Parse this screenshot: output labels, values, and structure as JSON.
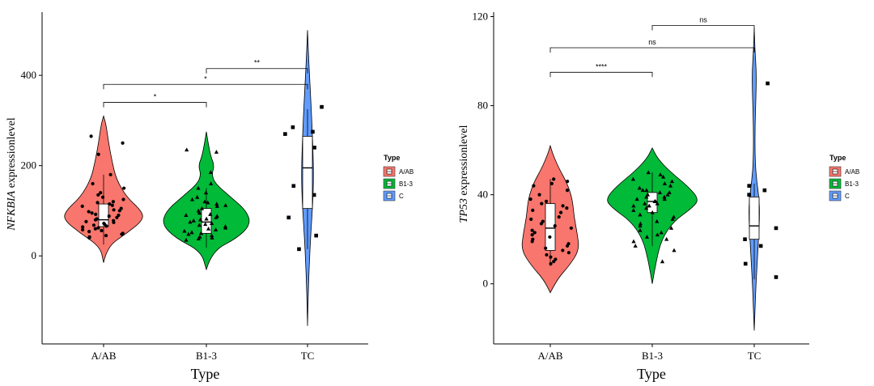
{
  "chart_data": [
    {
      "type": "violin",
      "xlabel": "Type",
      "ylabel_italic": "NFKBIA",
      "ylabel_rest": " expressionlevel",
      "categories": [
        "A/AB",
        "B1-3",
        "TC"
      ],
      "y_ticks": [
        0,
        200,
        400
      ],
      "ylim": [
        -195,
        540
      ],
      "colors": [
        "#F8766D",
        "#00BA38",
        "#619CFF"
      ],
      "legend": {
        "title": "Type",
        "entries": [
          "A/AB",
          "B1-3",
          "C"
        ],
        "position": "right"
      },
      "violins": [
        {
          "min": -15,
          "max": 310,
          "profile": [
            [
              -15,
              0
            ],
            [
              20,
              0.08
            ],
            [
              50,
              0.55
            ],
            [
              80,
              0.95
            ],
            [
              100,
              0.9
            ],
            [
              130,
              0.55
            ],
            [
              170,
              0.3
            ],
            [
              210,
              0.2
            ],
            [
              250,
              0.12
            ],
            [
              290,
              0.06
            ],
            [
              310,
              0
            ]
          ]
        },
        {
          "min": -30,
          "max": 275,
          "profile": [
            [
              -30,
              0
            ],
            [
              10,
              0.12
            ],
            [
              40,
              0.7
            ],
            [
              70,
              1.0
            ],
            [
              100,
              0.9
            ],
            [
              130,
              0.55
            ],
            [
              160,
              0.2
            ],
            [
              180,
              0.12
            ],
            [
              200,
              0.18
            ],
            [
              220,
              0.1
            ],
            [
              250,
              0.04
            ],
            [
              275,
              0
            ]
          ]
        },
        {
          "min": -155,
          "max": 500,
          "profile": [
            [
              -155,
              0
            ],
            [
              -80,
              0.04
            ],
            [
              0,
              0.12
            ],
            [
              60,
              0.2
            ],
            [
              120,
              0.3
            ],
            [
              180,
              0.34
            ],
            [
              240,
              0.3
            ],
            [
              300,
              0.24
            ],
            [
              380,
              0.14
            ],
            [
              440,
              0.06
            ],
            [
              500,
              0
            ]
          ]
        }
      ],
      "boxes": [
        {
          "q1": 65,
          "median": 80,
          "q3": 115,
          "wmin": 25,
          "wmax": 180
        },
        {
          "q1": 50,
          "median": 75,
          "q3": 105,
          "wmin": 18,
          "wmax": 150
        },
        {
          "q1": 105,
          "median": 195,
          "q3": 265,
          "wmin": 15,
          "wmax": 325
        }
      ],
      "points": [
        {
          "shape": "circle",
          "values": [
            265,
            250,
            225,
            180,
            160,
            150,
            140,
            135,
            130,
            125,
            120,
            118,
            115,
            112,
            110,
            105,
            102,
            100,
            98,
            95,
            92,
            90,
            88,
            85,
            82,
            80,
            78,
            76,
            74,
            72,
            70,
            68,
            66,
            64,
            62,
            60,
            58,
            56,
            54,
            50,
            48,
            45,
            42,
            40
          ]
        },
        {
          "shape": "triangle",
          "values": [
            235,
            230,
            185,
            160,
            150,
            140,
            130,
            125,
            120,
            118,
            115,
            112,
            110,
            105,
            100,
            95,
            92,
            90,
            88,
            85,
            82,
            80,
            78,
            75,
            72,
            70,
            68,
            65,
            62,
            60,
            58,
            55,
            52,
            50,
            48,
            45,
            42,
            40,
            38,
            35
          ]
        },
        {
          "shape": "square",
          "values": [
            330,
            285,
            275,
            270,
            240,
            155,
            135,
            85,
            45,
            15
          ]
        }
      ],
      "comparisons": [
        {
          "from": 0,
          "to": 1,
          "y": 340,
          "label": "*"
        },
        {
          "from": 0,
          "to": 2,
          "y": 380,
          "label": "*"
        },
        {
          "from": 1,
          "to": 2,
          "y": 415,
          "label": "**"
        }
      ]
    },
    {
      "type": "violin",
      "xlabel": "Type",
      "ylabel_italic": "TP53",
      "ylabel_rest": " expressionlevel",
      "categories": [
        "A/AB",
        "B1-3",
        "TC"
      ],
      "y_ticks": [
        0,
        40,
        80,
        120
      ],
      "ylim": [
        -27,
        122
      ],
      "colors": [
        "#F8766D",
        "#00BA38",
        "#619CFF"
      ],
      "legend": {
        "title": "Type",
        "entries": [
          "A/AB",
          "B1-3",
          "C"
        ],
        "position": "right"
      },
      "violins": [
        {
          "min": -4,
          "max": 62,
          "profile": [
            [
              -4,
              0
            ],
            [
              2,
              0.2
            ],
            [
              8,
              0.55
            ],
            [
              15,
              0.85
            ],
            [
              22,
              0.8
            ],
            [
              30,
              0.7
            ],
            [
              38,
              0.65
            ],
            [
              45,
              0.5
            ],
            [
              52,
              0.25
            ],
            [
              58,
              0.08
            ],
            [
              62,
              0
            ]
          ]
        },
        {
          "min": 0,
          "max": 61,
          "profile": [
            [
              0,
              0
            ],
            [
              10,
              0.08
            ],
            [
              20,
              0.2
            ],
            [
              28,
              0.45
            ],
            [
              34,
              0.85
            ],
            [
              38,
              1.0
            ],
            [
              44,
              0.75
            ],
            [
              50,
              0.4
            ],
            [
              56,
              0.12
            ],
            [
              61,
              0
            ]
          ]
        },
        {
          "min": -21,
          "max": 115,
          "profile": [
            [
              -21,
              0
            ],
            [
              -10,
              0.05
            ],
            [
              0,
              0.1
            ],
            [
              10,
              0.17
            ],
            [
              20,
              0.24
            ],
            [
              30,
              0.3
            ],
            [
              38,
              0.28
            ],
            [
              46,
              0.14
            ],
            [
              55,
              0.05
            ],
            [
              70,
              0.04
            ],
            [
              85,
              0.1
            ],
            [
              95,
              0.12
            ],
            [
              105,
              0.04
            ],
            [
              115,
              0
            ]
          ]
        }
      ],
      "boxes": [
        {
          "q1": 15,
          "median": 25,
          "q3": 36,
          "wmin": 8,
          "wmax": 47
        },
        {
          "q1": 32,
          "median": 37,
          "q3": 41,
          "wmin": 17,
          "wmax": 50
        },
        {
          "q1": 20,
          "median": 26,
          "q3": 39,
          "wmin": 2,
          "wmax": 45
        }
      ],
      "points": [
        {
          "shape": "circle",
          "values": [
            47,
            46,
            45,
            44,
            42,
            40,
            38,
            37,
            36,
            35,
            34,
            33,
            32,
            30,
            29,
            28,
            27,
            26,
            25,
            24,
            23,
            22,
            21,
            20,
            19,
            18,
            17,
            16,
            15,
            14,
            13,
            12,
            11,
            10,
            9
          ]
        },
        {
          "shape": "triangle",
          "values": [
            50,
            49,
            48,
            47,
            46,
            45,
            44,
            43,
            42,
            42,
            41,
            41,
            40,
            40,
            39,
            39,
            38,
            38,
            37,
            37,
            36,
            36,
            35,
            35,
            34,
            33,
            32,
            31,
            30,
            29,
            28,
            27,
            26,
            25,
            24,
            23,
            22,
            21,
            20,
            19,
            17,
            15,
            10
          ]
        },
        {
          "shape": "square",
          "values": [
            90,
            44,
            42,
            40,
            25,
            20,
            17,
            9,
            3
          ]
        }
      ],
      "comparisons": [
        {
          "from": 0,
          "to": 1,
          "y": 95,
          "label": "****"
        },
        {
          "from": 0,
          "to": 2,
          "y": 106,
          "label": "ns"
        },
        {
          "from": 1,
          "to": 2,
          "y": 116,
          "label": "ns"
        }
      ]
    }
  ]
}
